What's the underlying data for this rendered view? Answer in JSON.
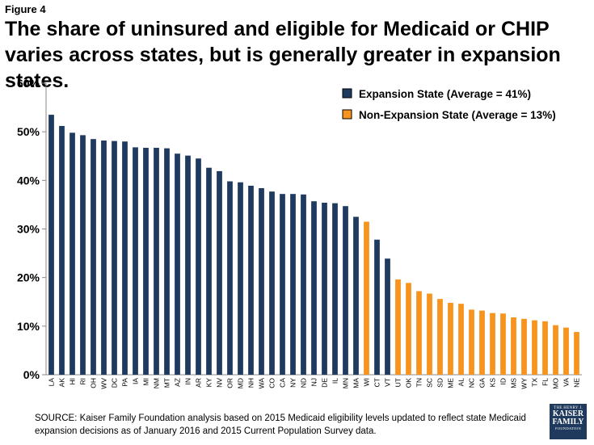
{
  "figure_label": "Figure 4",
  "title": "The share of uninsured and eligible for Medicaid or CHIP varies across states, but is generally greater in expansion states.",
  "source": "SOURCE: Kaiser Family Foundation analysis based on 2015 Medicaid eligibility levels updated to reflect state Medicaid expansion decisions as of January 2016 and 2015 Current Population Survey data.",
  "logo": {
    "line1": "THE HENRY J.",
    "line2": "KAISER",
    "line3": "FAMILY",
    "line4": "FOUNDATION"
  },
  "colors": {
    "expansion": "#1f3a5f",
    "non_expansion": "#f7941d"
  },
  "chart_data": {
    "type": "bar",
    "ylim": [
      0,
      60
    ],
    "yticks": [
      0,
      10,
      20,
      30,
      40,
      50,
      60
    ],
    "ytick_labels": [
      "0%",
      "10%",
      "20%",
      "30%",
      "40%",
      "50%",
      "60%"
    ],
    "legend_position": "top-right",
    "series": [
      {
        "name": "Expansion State (Average = 41%)",
        "color": "#1f3a5f"
      },
      {
        "name": "Non-Expansion State (Average = 13%)",
        "color": "#f7941d"
      }
    ],
    "categories": [
      "LA",
      "AK",
      "HI",
      "RI",
      "OH",
      "WV",
      "DC",
      "PA",
      "IA",
      "MI",
      "NM",
      "MT",
      "AZ",
      "IN",
      "AR",
      "KY",
      "NV",
      "OR",
      "MD",
      "NH",
      "WA",
      "CO",
      "CA",
      "NY",
      "ND",
      "NJ",
      "DE",
      "IL",
      "MN",
      "MA",
      "WI",
      "CT",
      "VT",
      "UT",
      "OK",
      "TN",
      "SC",
      "SD",
      "ME",
      "AL",
      "NC",
      "GA",
      "KS",
      "ID",
      "MS",
      "WY",
      "TX",
      "FL",
      "MO",
      "VA",
      "NE"
    ],
    "values": [
      53.5,
      51.2,
      49.8,
      49.3,
      48.5,
      48.2,
      48.1,
      48.0,
      46.8,
      46.7,
      46.7,
      46.6,
      45.5,
      45.1,
      44.5,
      42.6,
      41.9,
      39.8,
      39.6,
      38.9,
      38.4,
      37.7,
      37.2,
      37.2,
      37.1,
      35.7,
      35.4,
      35.3,
      34.7,
      32.5,
      31.5,
      27.8,
      23.9,
      19.6,
      18.9,
      17.2,
      16.7,
      15.6,
      14.8,
      14.6,
      13.4,
      13.2,
      12.7,
      12.6,
      11.8,
      11.5,
      11.2,
      11.0,
      10.2,
      9.7,
      8.8
    ],
    "series_index": [
      0,
      0,
      0,
      0,
      0,
      0,
      0,
      0,
      0,
      0,
      0,
      0,
      0,
      0,
      0,
      0,
      0,
      0,
      0,
      0,
      0,
      0,
      0,
      0,
      0,
      0,
      0,
      0,
      0,
      0,
      1,
      0,
      0,
      1,
      1,
      1,
      1,
      1,
      1,
      1,
      1,
      1,
      1,
      1,
      1,
      1,
      1,
      1,
      1,
      1,
      1
    ]
  }
}
